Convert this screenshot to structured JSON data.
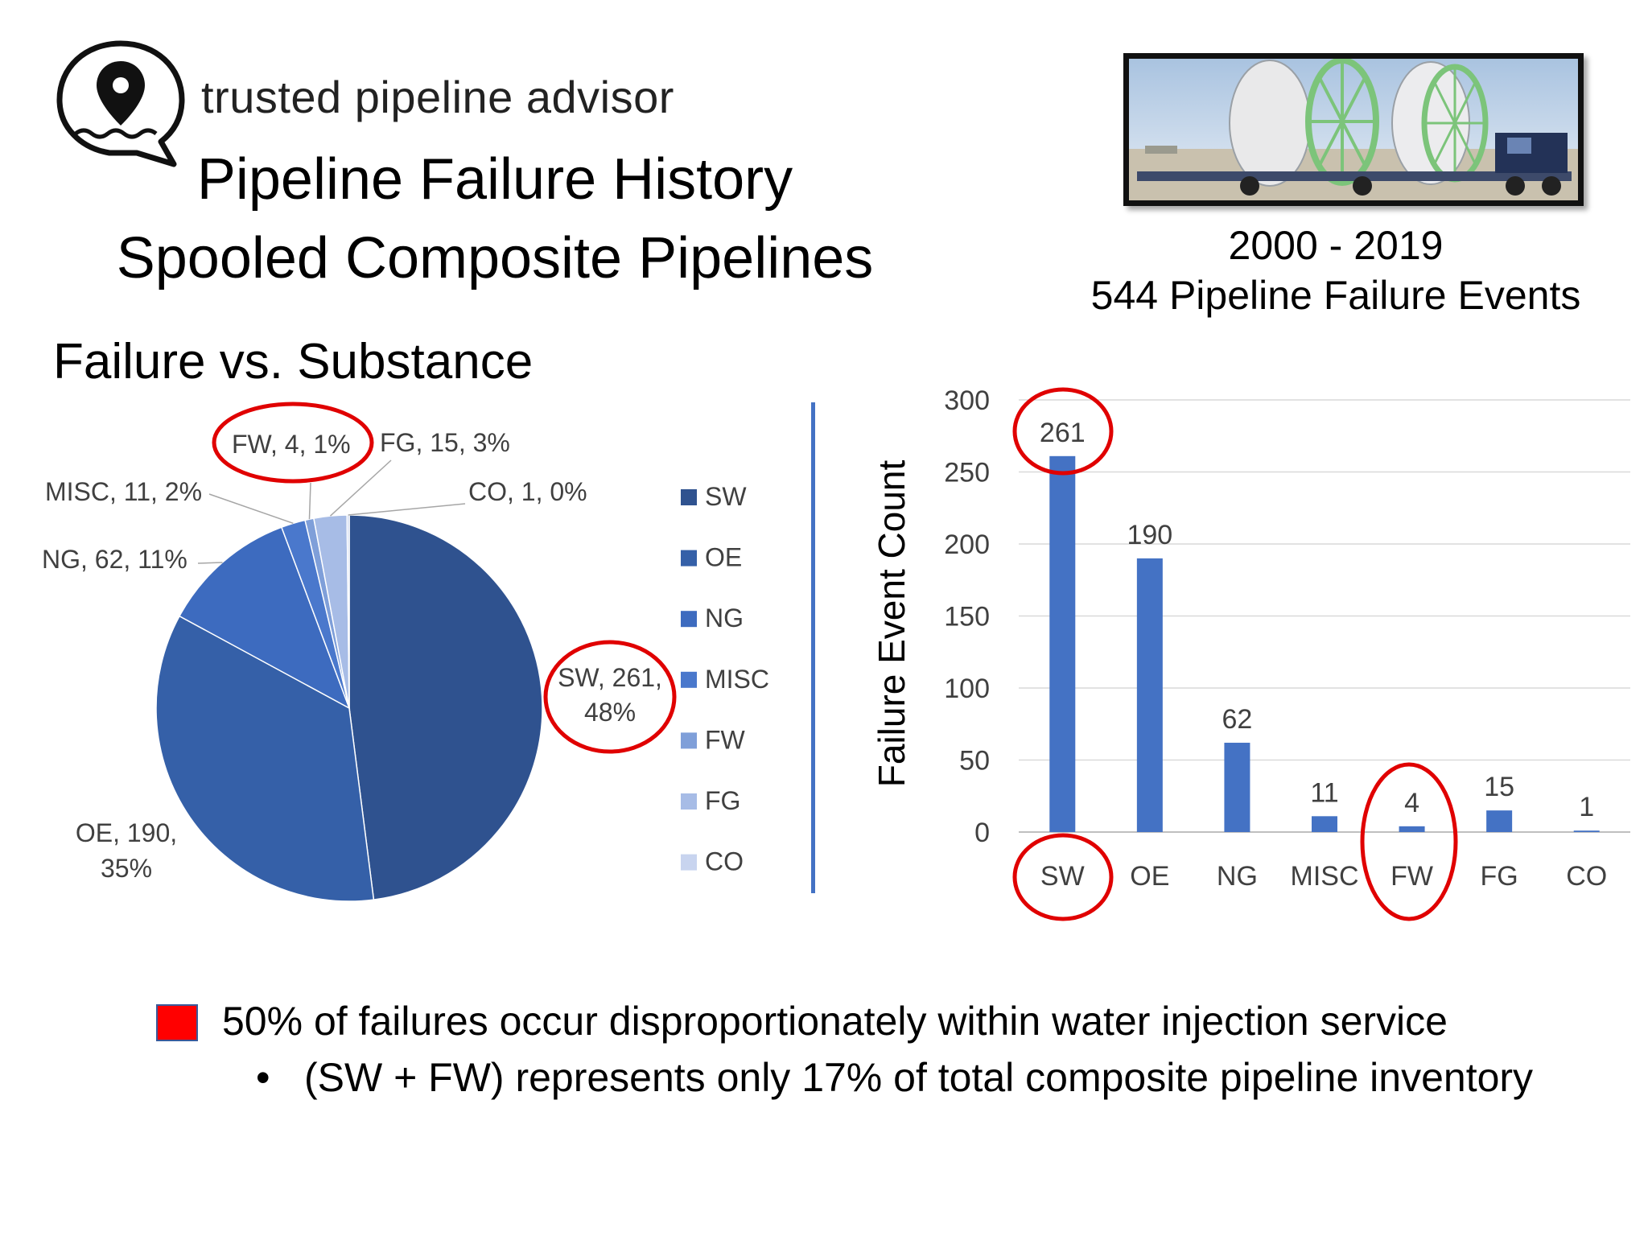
{
  "brand": {
    "name": "trusted pipeline advisor"
  },
  "title": {
    "line1": "Pipeline Failure History",
    "line2": "Spooled Composite Pipelines"
  },
  "summary": {
    "period": "2000 - 2019",
    "events": "544 Pipeline Failure Events"
  },
  "section_title": "Failure vs. Substance",
  "colors": {
    "SW": "#2f528f",
    "OE": "#3560a8",
    "NG": "#3d6bbf",
    "MISC": "#4a78cc",
    "FW": "#7f9fd9",
    "FG": "#a7bce6",
    "CO": "#c8d4ef",
    "bar": "#4472c4",
    "highlight": "#e00000"
  },
  "chart_data": [
    {
      "type": "pie",
      "title": "",
      "categories": [
        "SW",
        "OE",
        "NG",
        "MISC",
        "FW",
        "FG",
        "CO"
      ],
      "values": [
        261,
        190,
        62,
        11,
        4,
        15,
        1
      ],
      "data_labels": [
        "SW, 261, 48%",
        "OE, 190, 35%",
        "NG, 62, 11%",
        "MISC, 11, 2%",
        "FW, 4, 1%",
        "FG, 15, 3%",
        "CO, 1, 0%"
      ],
      "legend": {
        "position": "right",
        "entries": [
          "SW",
          "OE",
          "NG",
          "MISC",
          "FW",
          "FG",
          "CO"
        ]
      },
      "highlighted": [
        "SW",
        "FW"
      ]
    },
    {
      "type": "bar",
      "title": "",
      "categories": [
        "SW",
        "OE",
        "NG",
        "MISC",
        "FW",
        "FG",
        "CO"
      ],
      "values": [
        261,
        190,
        62,
        11,
        4,
        15,
        1
      ],
      "xlabel": "",
      "ylabel": "Failure Event Count",
      "ylim": [
        0,
        300
      ],
      "yticks": [
        0,
        50,
        100,
        150,
        200,
        250,
        300
      ],
      "grid": true,
      "highlighted": [
        "SW",
        "FW"
      ]
    }
  ],
  "notes": {
    "main": "50% of failures occur disproportionately within water injection service",
    "bullet_mark": "•",
    "sub": "(SW + FW) represents only 17% of total composite pipeline inventory"
  }
}
